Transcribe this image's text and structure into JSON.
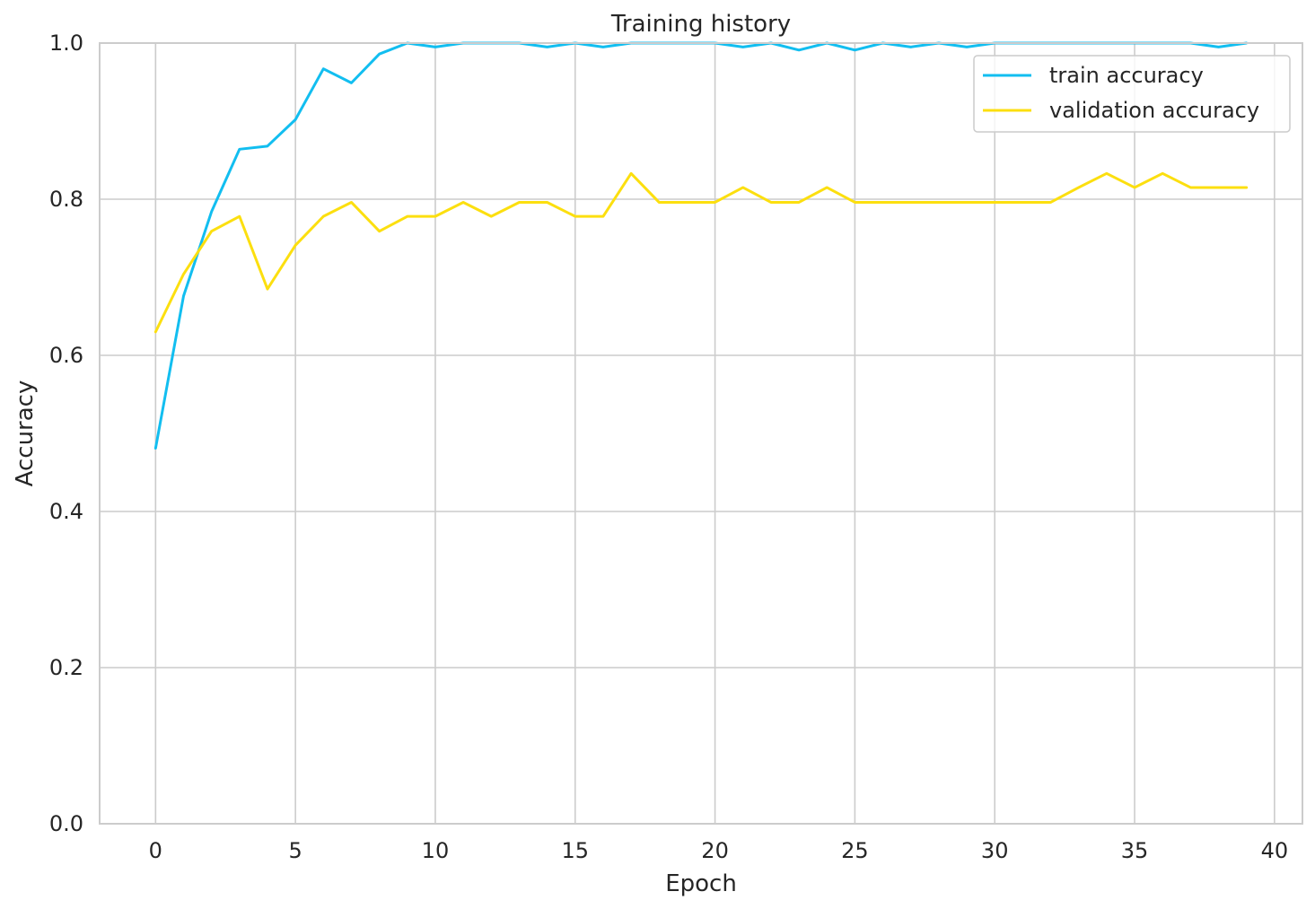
{
  "chart_data": {
    "type": "line",
    "title": "Training history",
    "xlabel": "Epoch",
    "ylabel": "Accuracy",
    "xlim": [
      -2,
      41
    ],
    "ylim": [
      0,
      1.0
    ],
    "xticks": [
      0,
      5,
      10,
      15,
      20,
      25,
      30,
      35,
      40
    ],
    "yticks": [
      0.0,
      0.2,
      0.4,
      0.6,
      0.8,
      1.0
    ],
    "xtick_labels": [
      "0",
      "5",
      "10",
      "15",
      "20",
      "25",
      "30",
      "35",
      "40"
    ],
    "ytick_labels": [
      "0.0",
      "0.2",
      "0.4",
      "0.6",
      "0.8",
      "1.0"
    ],
    "grid": true,
    "legend_position": "top-right",
    "x": [
      0,
      1,
      2,
      3,
      4,
      5,
      6,
      7,
      8,
      9,
      10,
      11,
      12,
      13,
      14,
      15,
      16,
      17,
      18,
      19,
      20,
      21,
      22,
      23,
      24,
      25,
      26,
      27,
      28,
      29,
      30,
      31,
      32,
      33,
      34,
      35,
      36,
      37,
      38,
      39
    ],
    "series": [
      {
        "name": "train accuracy",
        "color": "#12bef0",
        "values": [
          0.481,
          0.676,
          0.784,
          0.864,
          0.868,
          0.902,
          0.967,
          0.949,
          0.986,
          1.0,
          0.995,
          1.0,
          1.0,
          1.0,
          0.995,
          1.0,
          0.995,
          1.0,
          1.0,
          1.0,
          1.0,
          0.995,
          1.0,
          0.991,
          1.0,
          0.991,
          1.0,
          0.995,
          1.0,
          0.995,
          1.0,
          1.0,
          1.0,
          1.0,
          1.0,
          1.0,
          1.0,
          1.0,
          0.995,
          1.0
        ]
      },
      {
        "name": "validation accuracy",
        "color": "#fcdf0f",
        "values": [
          0.63,
          0.704,
          0.759,
          0.778,
          0.685,
          0.741,
          0.778,
          0.796,
          0.759,
          0.778,
          0.778,
          0.796,
          0.778,
          0.796,
          0.796,
          0.778,
          0.778,
          0.833,
          0.796,
          0.796,
          0.796,
          0.815,
          0.796,
          0.796,
          0.815,
          0.796,
          0.796,
          0.796,
          0.796,
          0.796,
          0.796,
          0.796,
          0.796,
          0.815,
          0.833,
          0.815,
          0.833,
          0.815,
          0.815,
          0.815
        ]
      }
    ]
  }
}
